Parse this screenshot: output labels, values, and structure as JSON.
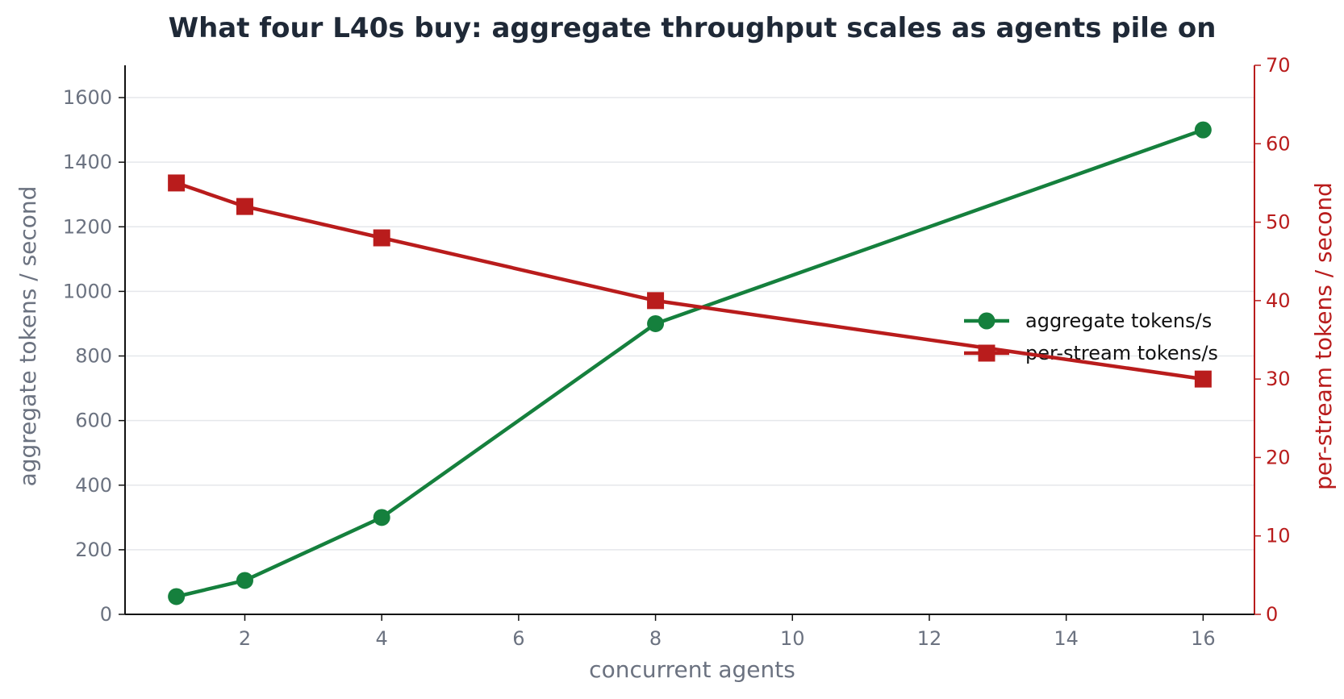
{
  "chart_data": {
    "type": "line",
    "title": "What four L40s buy: aggregate throughput scales as agents pile on",
    "xlabel": "concurrent agents",
    "ylabel_left": "aggregate tokens / second",
    "ylabel_right": "per-stream tokens / second",
    "x": [
      1,
      2,
      4,
      8,
      16
    ],
    "xlim": [
      0.25,
      16.75
    ],
    "xticks": [
      2,
      4,
      6,
      8,
      10,
      12,
      14,
      16
    ],
    "ylim_left": [
      0,
      1700
    ],
    "yticks_left": [
      0,
      200,
      400,
      600,
      800,
      1000,
      1200,
      1400,
      1600
    ],
    "ylim_right": [
      0,
      70
    ],
    "yticks_right": [
      0,
      10,
      20,
      30,
      40,
      50,
      60,
      70
    ],
    "grid": "horizontal",
    "legend_position": "center-right",
    "series": [
      {
        "name": "aggregate tokens/s",
        "axis": "left",
        "color": "#15803d",
        "marker": "circle",
        "values": [
          55,
          105,
          300,
          900,
          1500
        ]
      },
      {
        "name": "per-stream tokens/s",
        "axis": "right",
        "color": "#b91c1c",
        "marker": "square",
        "values": [
          55,
          52,
          48,
          40,
          30
        ]
      }
    ]
  }
}
